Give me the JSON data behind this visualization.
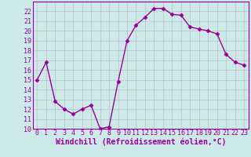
{
  "x": [
    0,
    1,
    2,
    3,
    4,
    5,
    6,
    7,
    8,
    9,
    10,
    11,
    12,
    13,
    14,
    15,
    16,
    17,
    18,
    19,
    20,
    21,
    22,
    23
  ],
  "y": [
    15.0,
    16.8,
    12.8,
    12.0,
    11.5,
    12.0,
    12.4,
    10.0,
    10.2,
    14.8,
    19.0,
    20.6,
    21.4,
    22.3,
    22.3,
    21.7,
    21.6,
    20.4,
    20.2,
    20.0,
    19.7,
    17.6,
    16.8,
    16.5
  ],
  "color": "#990099",
  "bg_color": "#cce8e8",
  "grid_color": "#bbbbbb",
  "xlabel": "Windchill (Refroidissement éolien,°C)",
  "ylim": [
    10,
    23
  ],
  "xlim": [
    -0.5,
    23.5
  ],
  "yticks": [
    10,
    11,
    12,
    13,
    14,
    15,
    16,
    17,
    18,
    19,
    20,
    21,
    22
  ],
  "xticks": [
    0,
    1,
    2,
    3,
    4,
    5,
    6,
    7,
    8,
    9,
    10,
    11,
    12,
    13,
    14,
    15,
    16,
    17,
    18,
    19,
    20,
    21,
    22,
    23
  ],
  "marker": "D",
  "markersize": 2.5,
  "linewidth": 1.0,
  "xlabel_fontsize": 7.0,
  "tick_fontsize": 6.0
}
